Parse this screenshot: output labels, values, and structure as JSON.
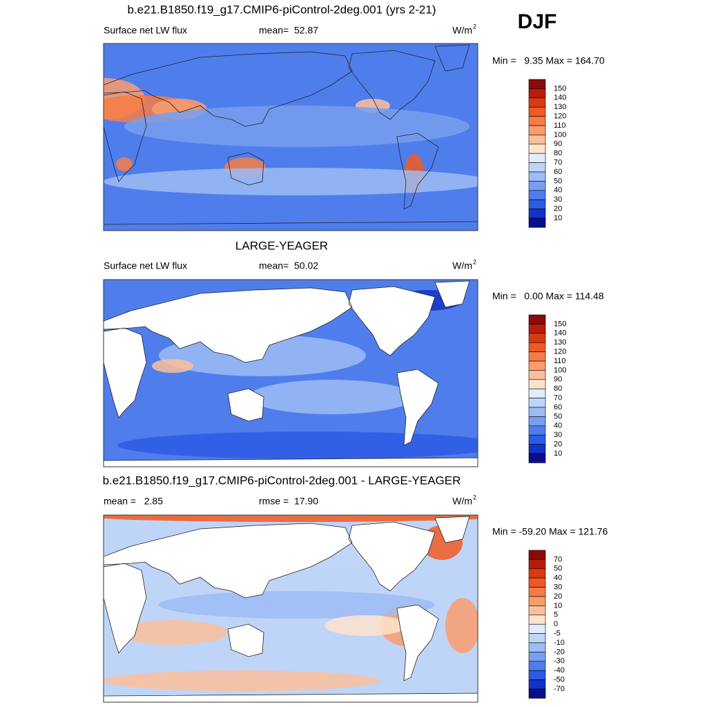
{
  "season": "DJF",
  "panels": [
    {
      "title": "b.e21.B1850.f19_g17.CMIP6-piControl-2deg.001 (yrs 2-21)",
      "left": "Surface net LW flux",
      "center": "mean=  52.87",
      "units": {
        "base": "W/m",
        "sup": "2"
      },
      "minmax": "Min =   9.35 Max = 164.70",
      "colorbar_labels": [
        150,
        140,
        130,
        120,
        110,
        100,
        90,
        80,
        70,
        60,
        50,
        40,
        30,
        20,
        10
      ]
    },
    {
      "title": "LARGE-YEAGER",
      "left": "Surface net LW flux",
      "center": "mean=  50.02",
      "units": {
        "base": "W/m",
        "sup": "2"
      },
      "minmax": "Min =   0.00 Max = 114.48",
      "colorbar_labels": [
        150,
        140,
        130,
        120,
        110,
        100,
        90,
        80,
        70,
        60,
        50,
        40,
        30,
        20,
        10
      ]
    },
    {
      "title": "b.e21.B1850.f19_g17.CMIP6-piControl-2deg.001 - LARGE-YEAGER",
      "left": "mean =   2.85",
      "center": "rmse =  17.90",
      "units": {
        "base": "W/m",
        "sup": "2"
      },
      "minmax": "Min = -59.20 Max = 121.76",
      "colorbar_labels": [
        70,
        50,
        40,
        30,
        20,
        10,
        5,
        0,
        -5,
        -10,
        -20,
        -30,
        -40,
        -50,
        -70
      ]
    }
  ],
  "colorbar_colors": [
    "#8c0a0a",
    "#b81d0a",
    "#d93a10",
    "#f05a22",
    "#f77b45",
    "#fa9c6e",
    "#fcbf9b",
    "#fde3cc",
    "#e0ecfb",
    "#bfd5f7",
    "#9cbcf4",
    "#779ff0",
    "#4f7eec",
    "#2c5be6",
    "#1232c8",
    "#060f8c"
  ]
}
